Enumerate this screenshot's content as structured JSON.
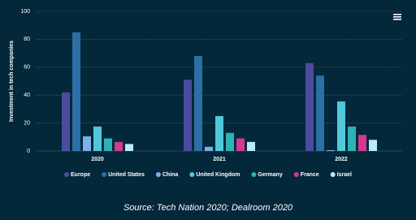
{
  "chart_data": {
    "type": "bar",
    "y_label": "Investment in tech companies",
    "source": "Source: Tech Nation 2020; Dealroom 2020",
    "categories": [
      "2020",
      "2021",
      "2022"
    ],
    "series": [
      {
        "name": "Europe",
        "color": "#4b4c9e",
        "values": [
          42,
          51,
          63
        ]
      },
      {
        "name": "United States",
        "color": "#2c6ea6",
        "values": [
          85,
          68,
          54
        ]
      },
      {
        "name": "China",
        "color": "#7eb0e8",
        "values": [
          10.5,
          3,
          0.6
        ]
      },
      {
        "name": "United Kingdom",
        "color": "#50c8da",
        "values": [
          17.5,
          25,
          35.5
        ]
      },
      {
        "name": "Germany",
        "color": "#2bb3b5",
        "values": [
          9,
          13,
          17.5
        ]
      },
      {
        "name": "France",
        "color": "#d3398e",
        "values": [
          6.5,
          9,
          11.5
        ]
      },
      {
        "name": "Israel",
        "color": "#b9ecf8",
        "values": [
          5,
          6.5,
          8
        ]
      }
    ],
    "ylim": [
      0,
      100
    ],
    "yticks": [
      0,
      20,
      40,
      60,
      80,
      100
    ],
    "grid": true
  }
}
